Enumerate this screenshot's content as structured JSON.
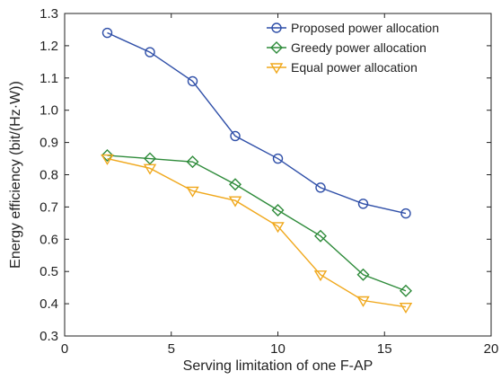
{
  "chart_data": {
    "type": "line",
    "xlabel": "Serving limitation of one F-AP",
    "ylabel": "Energy efficiency (bit/(Hz·W))",
    "xlim": [
      0,
      20
    ],
    "ylim": [
      0.3,
      1.3
    ],
    "xticks": [
      "0",
      "5",
      "10",
      "15",
      "20"
    ],
    "yticks": [
      "0.3",
      "0.4",
      "0.5",
      "0.6",
      "0.7",
      "0.8",
      "0.9",
      "1.0",
      "1.1",
      "1.2",
      "1.3"
    ],
    "grid": false,
    "legend_position": "top-right",
    "x": [
      2,
      4,
      6,
      8,
      10,
      12,
      14,
      16
    ],
    "series": [
      {
        "name": "Proposed power allocation",
        "color": "#2f4fa8",
        "marker": "circle",
        "values": [
          1.24,
          1.18,
          1.09,
          0.92,
          0.85,
          0.76,
          0.71,
          0.68
        ]
      },
      {
        "name": "Greedy power allocation",
        "color": "#2e8b3a",
        "marker": "diamond",
        "values": [
          0.86,
          0.85,
          0.84,
          0.77,
          0.69,
          0.61,
          0.49,
          0.44
        ]
      },
      {
        "name": "Equal power allocation",
        "color": "#f0a81c",
        "marker": "triangle-down",
        "values": [
          0.85,
          0.82,
          0.75,
          0.72,
          0.64,
          0.49,
          0.41,
          0.39
        ]
      }
    ]
  }
}
